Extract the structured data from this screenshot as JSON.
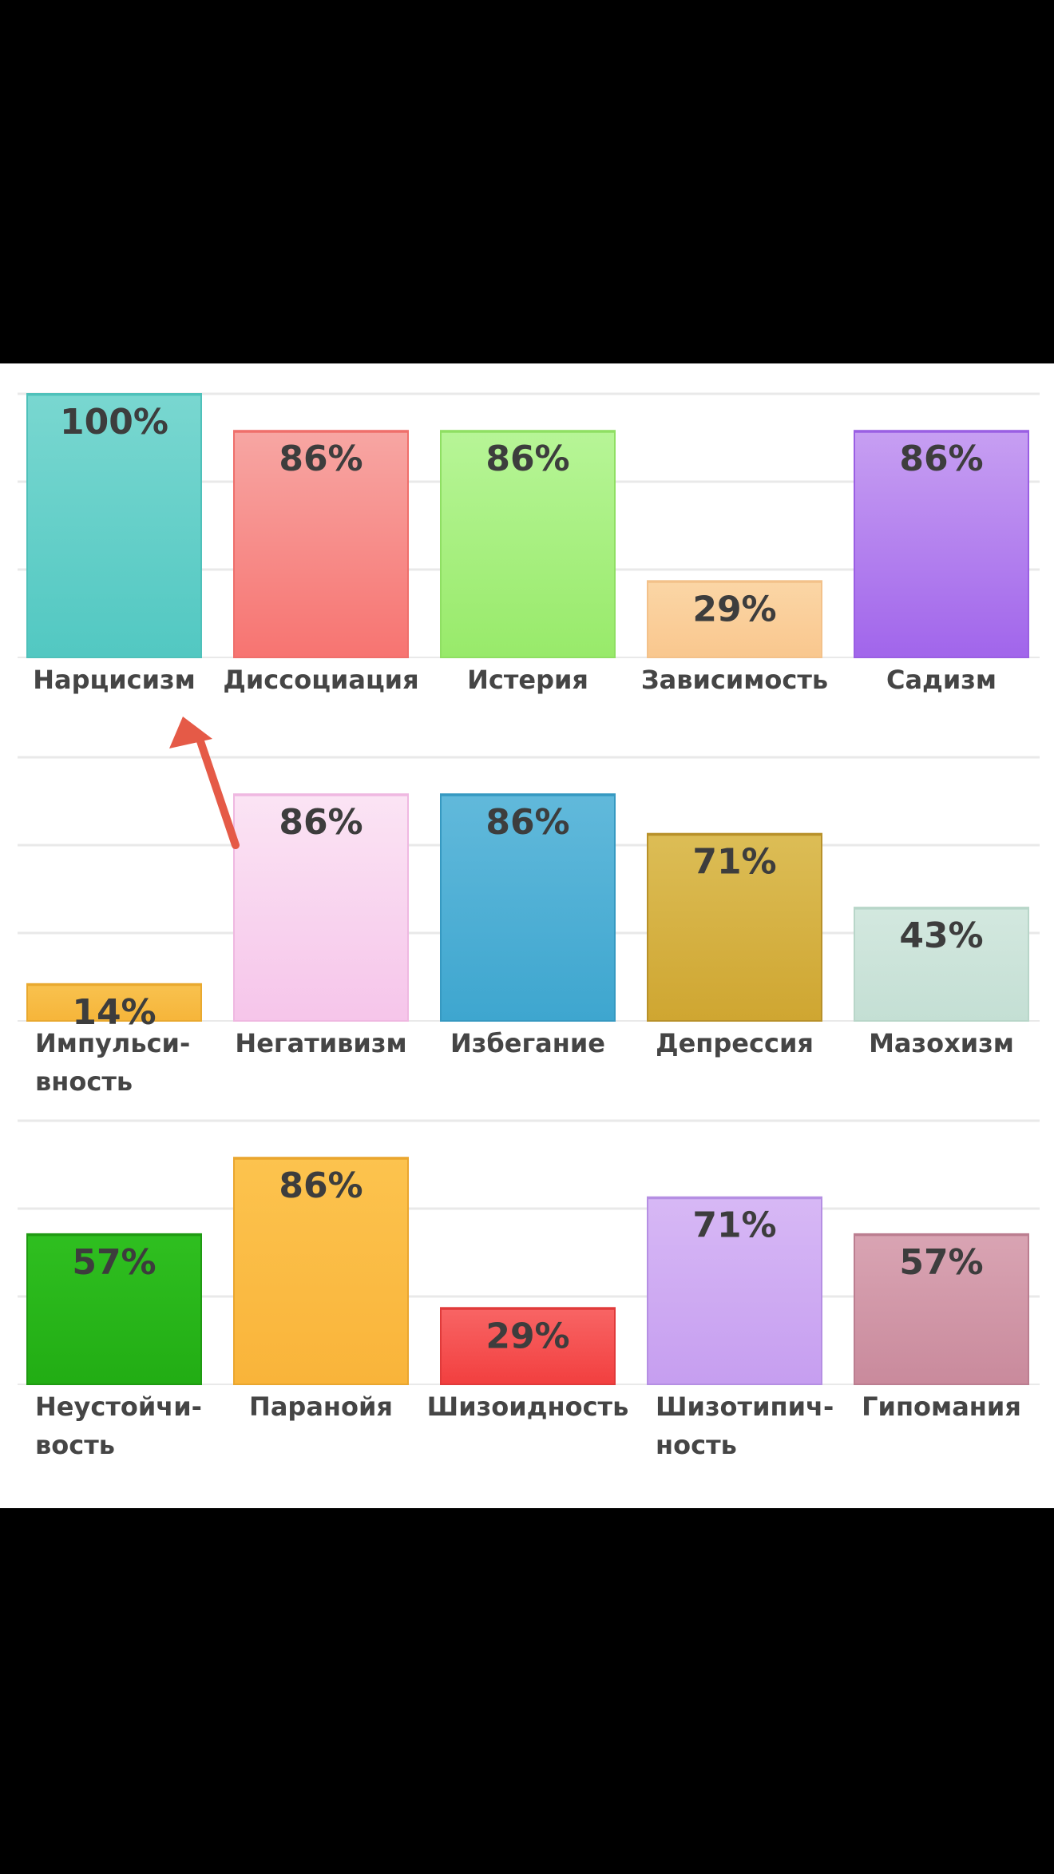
{
  "chart_data": {
    "type": "bar",
    "unit": "%",
    "ylim": [
      0,
      100
    ],
    "grid": true,
    "rows": [
      {
        "items": [
          {
            "label": [
              "Нарцисизм"
            ],
            "value": 100,
            "value_label": "100%",
            "color_top": "#79d7d0",
            "color_bottom": "#52c8c2",
            "border": "#4fc1ba"
          },
          {
            "label": [
              "Диссоциация"
            ],
            "value": 86,
            "value_label": "86%",
            "color_top": "#f7a6a3",
            "color_bottom": "#f77471",
            "border": "#ef6f6b"
          },
          {
            "label": [
              "Истерия"
            ],
            "value": 86,
            "value_label": "86%",
            "color_top": "#b7f597",
            "color_bottom": "#98ea6a",
            "border": "#8fdf63"
          },
          {
            "label": [
              "Зависимость"
            ],
            "value": 29,
            "value_label": "29%",
            "color_top": "#fbd6a6",
            "color_bottom": "#f9c78e",
            "border": "#f3c18a"
          },
          {
            "label": [
              "Садизм"
            ],
            "value": 86,
            "value_label": "86%",
            "color_top": "#c79ff2",
            "color_bottom": "#a165eb",
            "border": "#9a5fe3"
          }
        ]
      },
      {
        "items": [
          {
            "label": [
              "Импульси-",
              "вность"
            ],
            "value": 14,
            "value_label": "14%",
            "color_top": "#f8c24f",
            "color_bottom": "#f6b53a",
            "border": "#e9a92f"
          },
          {
            "label": [
              "Негативизм"
            ],
            "value": 86,
            "value_label": "86%",
            "color_top": "#fbe4f4",
            "color_bottom": "#f6c5ea",
            "border": "#efb8e1"
          },
          {
            "label": [
              "Избегание"
            ],
            "value": 86,
            "value_label": "86%",
            "color_top": "#61b9db",
            "color_bottom": "#3ea6cf",
            "border": "#3699c1"
          },
          {
            "label": [
              "Депрессия"
            ],
            "value": 71,
            "value_label": "71%",
            "color_top": "#dcbd56",
            "color_bottom": "#cfa631",
            "border": "#b8912a"
          },
          {
            "label": [
              "Мазохизм"
            ],
            "value": 43,
            "value_label": "43%",
            "color_top": "#d3e8df",
            "color_bottom": "#c4dfd4",
            "border": "#b8d6c9"
          }
        ]
      },
      {
        "items": [
          {
            "label": [
              "Неустойчи-",
              "вость"
            ],
            "value": 57,
            "value_label": "57%",
            "color_top": "#2fbf20",
            "color_bottom": "#22ad14",
            "border": "#1f9a12"
          },
          {
            "label": [
              "Паранойя"
            ],
            "value": 86,
            "value_label": "86%",
            "color_top": "#fcc34e",
            "color_bottom": "#f9b43a",
            "border": "#eaa62f"
          },
          {
            "label": [
              "Шизоидность"
            ],
            "value": 29,
            "value_label": "29%",
            "color_top": "#f86565",
            "color_bottom": "#f23f3f",
            "border": "#e03a3a"
          },
          {
            "label": [
              "Шизотипич-",
              "ность"
            ],
            "value": 71,
            "value_label": "71%",
            "color_top": "#d7b8f5",
            "color_bottom": "#c69ef0",
            "border": "#b58fe3"
          },
          {
            "label": [
              "Гипомания"
            ],
            "value": 57,
            "value_label": "57%",
            "color_top": "#d9a4b3",
            "color_bottom": "#c98a9c",
            "border": "#bb7e90"
          }
        ]
      }
    ]
  },
  "annotation": {
    "arrow_color": "#e55a47"
  }
}
